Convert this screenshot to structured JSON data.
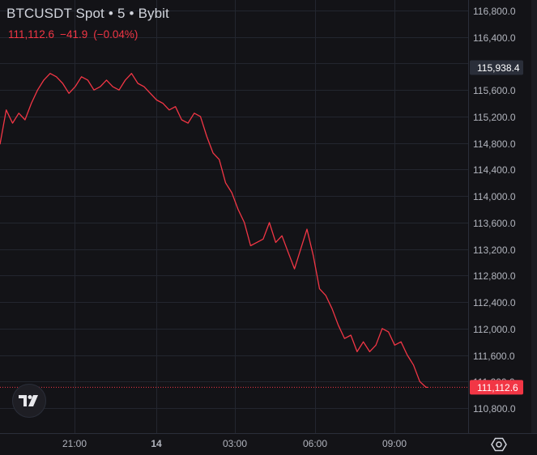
{
  "header": {
    "symbol": "BTCUSDT Spot",
    "interval": "5",
    "exchange": "Bybit",
    "separator": "•"
  },
  "quote": {
    "last": "111,112.6",
    "change": "−41.9",
    "change_pct": "(−0.04%)"
  },
  "colors": {
    "background": "#131317",
    "line": "#f23645",
    "grid": "#23262f",
    "text": "#d1d4dc",
    "axis_text": "#b2b5be"
  },
  "chart_data": {
    "type": "line",
    "title": "BTCUSDT Spot · 5 · Bybit",
    "xlabel": "",
    "ylabel": "",
    "grid": true,
    "ylim": [
      110600,
      117000
    ],
    "y_ticks": [
      116800,
      116400,
      116000,
      115600,
      115200,
      114800,
      114400,
      114000,
      113600,
      113200,
      112800,
      112400,
      112000,
      111600,
      111200,
      110800
    ],
    "y_tick_labels": [
      "116,800.0",
      "116,400.0",
      "116,000.0",
      "115,600.0",
      "115,200.0",
      "114,800.0",
      "114,400.0",
      "114,000.0",
      "113,600.0",
      "113,200.0",
      "112,800.0",
      "112,400.0",
      "112,000.0",
      "111,600.0",
      "111,200.0",
      "110,800.0"
    ],
    "x_ticks": [
      "21:00",
      "14",
      "03:00",
      "06:00",
      "09:00"
    ],
    "price_labels": [
      {
        "label": "115,938.4",
        "value": 115938.4,
        "style": "dark"
      },
      {
        "label": "111,112.6",
        "value": 111112.6,
        "style": "red"
      }
    ],
    "last_price": 111112.6,
    "series": [
      {
        "values": [
          114780,
          115300,
          115100,
          115250,
          115150,
          115400,
          115600,
          115750,
          115850,
          115800,
          115700,
          115550,
          115650,
          115800,
          115750,
          115600,
          115650,
          115750,
          115650,
          115600,
          115750,
          115850,
          115700,
          115650,
          115550,
          115450,
          115400,
          115300,
          115350,
          115150,
          115100,
          115250,
          115200,
          114900,
          114650,
          114550,
          114200,
          114050,
          113800,
          113600,
          113250,
          113300,
          113350,
          113600,
          113300,
          113400,
          113150,
          112900,
          113200,
          113500,
          113100,
          112600,
          112500,
          112300,
          112050,
          111850,
          111900,
          111650,
          111800,
          111650,
          111750,
          112000,
          111950,
          111750,
          111800,
          111600,
          111450,
          111200,
          111113
        ]
      }
    ]
  }
}
